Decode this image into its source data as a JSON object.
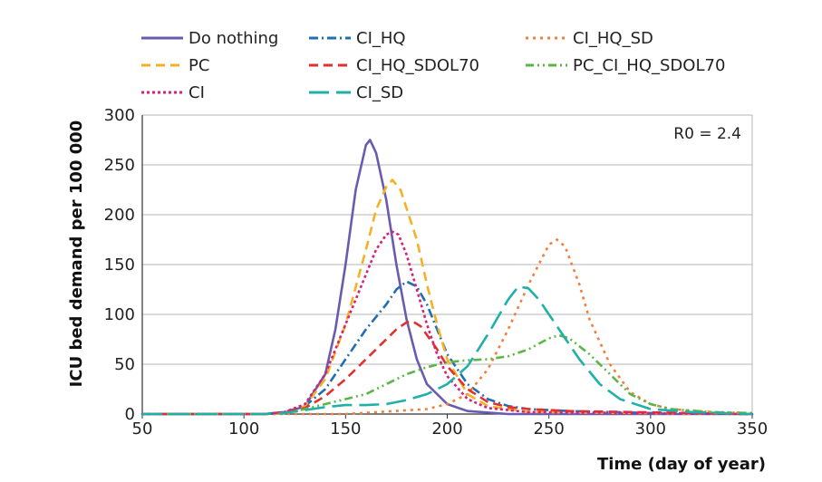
{
  "chart_data": {
    "type": "line",
    "xlabel": "Time (day of year)",
    "ylabel": "ICU bed demand per 100 000",
    "xlim": [
      50,
      350
    ],
    "ylim": [
      0,
      300
    ],
    "xticks": [
      50,
      100,
      150,
      200,
      250,
      300,
      350
    ],
    "yticks": [
      0,
      50,
      100,
      150,
      200,
      250,
      300
    ],
    "grid": "horizontal",
    "annotation": "R0 = 2.4",
    "legend_position": "top",
    "series": [
      {
        "name": "Do nothing",
        "color": "#6a5bb0",
        "dash": "solid",
        "points": [
          [
            50,
            0
          ],
          [
            110,
            0
          ],
          [
            120,
            1
          ],
          [
            130,
            8
          ],
          [
            140,
            40
          ],
          [
            145,
            85
          ],
          [
            150,
            150
          ],
          [
            155,
            225
          ],
          [
            160,
            270
          ],
          [
            162,
            275
          ],
          [
            165,
            262
          ],
          [
            170,
            215
          ],
          [
            175,
            150
          ],
          [
            180,
            95
          ],
          [
            185,
            55
          ],
          [
            190,
            30
          ],
          [
            200,
            10
          ],
          [
            210,
            3
          ],
          [
            230,
            0
          ],
          [
            350,
            0
          ]
        ]
      },
      {
        "name": "CI_HQ",
        "color": "#1f6fb2",
        "dash": "dashdot",
        "points": [
          [
            50,
            0
          ],
          [
            110,
            0
          ],
          [
            120,
            2
          ],
          [
            130,
            8
          ],
          [
            140,
            25
          ],
          [
            150,
            55
          ],
          [
            160,
            85
          ],
          [
            170,
            110
          ],
          [
            175,
            125
          ],
          [
            180,
            133
          ],
          [
            185,
            128
          ],
          [
            190,
            110
          ],
          [
            195,
            85
          ],
          [
            200,
            60
          ],
          [
            210,
            30
          ],
          [
            220,
            15
          ],
          [
            230,
            8
          ],
          [
            240,
            5
          ],
          [
            260,
            3
          ],
          [
            280,
            2
          ],
          [
            300,
            1
          ],
          [
            350,
            0
          ]
        ]
      },
      {
        "name": "CI_HQ_SD",
        "color": "#f07f3c",
        "dash": "dot",
        "points": [
          [
            50,
            0
          ],
          [
            150,
            0
          ],
          [
            190,
            5
          ],
          [
            200,
            10
          ],
          [
            210,
            20
          ],
          [
            220,
            45
          ],
          [
            230,
            85
          ],
          [
            240,
            130
          ],
          [
            250,
            170
          ],
          [
            254,
            175
          ],
          [
            258,
            168
          ],
          [
            265,
            130
          ],
          [
            270,
            95
          ],
          [
            280,
            50
          ],
          [
            290,
            22
          ],
          [
            300,
            10
          ],
          [
            310,
            5
          ],
          [
            330,
            2
          ],
          [
            350,
            1
          ]
        ]
      },
      {
        "name": "PC",
        "color": "#f5b124",
        "dash": "dash",
        "points": [
          [
            50,
            0
          ],
          [
            110,
            0
          ],
          [
            120,
            1
          ],
          [
            130,
            8
          ],
          [
            140,
            35
          ],
          [
            150,
            90
          ],
          [
            160,
            165
          ],
          [
            165,
            205
          ],
          [
            170,
            228
          ],
          [
            173,
            235
          ],
          [
            177,
            225
          ],
          [
            185,
            175
          ],
          [
            190,
            130
          ],
          [
            195,
            90
          ],
          [
            200,
            55
          ],
          [
            210,
            20
          ],
          [
            220,
            8
          ],
          [
            240,
            2
          ],
          [
            350,
            0
          ]
        ]
      },
      {
        "name": "CI_HQ_SDOL70",
        "color": "#e0312f",
        "dash": "dash",
        "points": [
          [
            50,
            0
          ],
          [
            110,
            0
          ],
          [
            120,
            2
          ],
          [
            130,
            6
          ],
          [
            140,
            18
          ],
          [
            150,
            35
          ],
          [
            160,
            55
          ],
          [
            170,
            75
          ],
          [
            175,
            85
          ],
          [
            180,
            92
          ],
          [
            183,
            93
          ],
          [
            187,
            88
          ],
          [
            195,
            65
          ],
          [
            200,
            48
          ],
          [
            210,
            25
          ],
          [
            220,
            12
          ],
          [
            230,
            7
          ],
          [
            240,
            5
          ],
          [
            260,
            3
          ],
          [
            290,
            2
          ],
          [
            350,
            0
          ]
        ]
      },
      {
        "name": "PC_CI_HQ_SDOL70",
        "color": "#5cb548",
        "dash": "dashdotdot",
        "points": [
          [
            50,
            0
          ],
          [
            110,
            0
          ],
          [
            120,
            1
          ],
          [
            130,
            5
          ],
          [
            140,
            10
          ],
          [
            150,
            15
          ],
          [
            160,
            20
          ],
          [
            170,
            30
          ],
          [
            180,
            40
          ],
          [
            190,
            47
          ],
          [
            200,
            52
          ],
          [
            210,
            54
          ],
          [
            220,
            55
          ],
          [
            230,
            58
          ],
          [
            240,
            65
          ],
          [
            250,
            76
          ],
          [
            255,
            79
          ],
          [
            260,
            76
          ],
          [
            270,
            60
          ],
          [
            280,
            40
          ],
          [
            290,
            20
          ],
          [
            300,
            10
          ],
          [
            310,
            5
          ],
          [
            330,
            2
          ],
          [
            350,
            1
          ]
        ]
      },
      {
        "name": "CI",
        "color": "#d6217c",
        "dash": "densedot",
        "points": [
          [
            50,
            0
          ],
          [
            110,
            0
          ],
          [
            120,
            2
          ],
          [
            130,
            10
          ],
          [
            140,
            40
          ],
          [
            150,
            90
          ],
          [
            160,
            140
          ],
          [
            165,
            165
          ],
          [
            170,
            180
          ],
          [
            173,
            183
          ],
          [
            176,
            180
          ],
          [
            180,
            160
          ],
          [
            185,
            125
          ],
          [
            190,
            90
          ],
          [
            195,
            60
          ],
          [
            200,
            38
          ],
          [
            210,
            15
          ],
          [
            220,
            6
          ],
          [
            240,
            2
          ],
          [
            350,
            0
          ]
        ]
      },
      {
        "name": "CI_SD",
        "color": "#1fb0a8",
        "dash": "longdash",
        "points": [
          [
            50,
            0
          ],
          [
            110,
            0
          ],
          [
            120,
            1
          ],
          [
            130,
            4
          ],
          [
            140,
            7
          ],
          [
            150,
            9
          ],
          [
            160,
            9
          ],
          [
            170,
            10
          ],
          [
            180,
            14
          ],
          [
            190,
            20
          ],
          [
            200,
            30
          ],
          [
            210,
            48
          ],
          [
            220,
            80
          ],
          [
            230,
            115
          ],
          [
            235,
            128
          ],
          [
            240,
            126
          ],
          [
            245,
            115
          ],
          [
            255,
            85
          ],
          [
            265,
            55
          ],
          [
            275,
            30
          ],
          [
            285,
            15
          ],
          [
            300,
            5
          ],
          [
            320,
            2
          ],
          [
            350,
            0
          ]
        ]
      }
    ]
  }
}
